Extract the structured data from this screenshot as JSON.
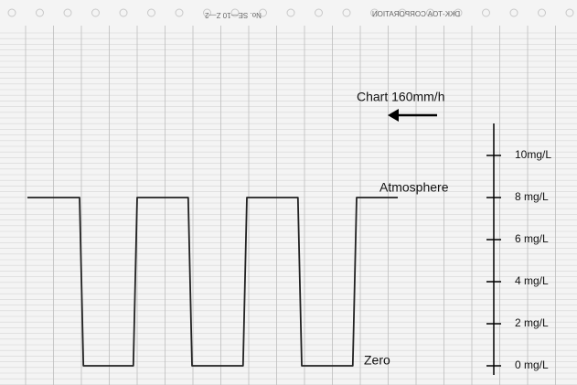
{
  "chart_data": {
    "type": "line",
    "header": {
      "sheet_number": "No. SE—10 Z—2",
      "maker": "DKK-TOA CORPORATION"
    },
    "annotations": {
      "speed": "Chart 160mm/h",
      "atmosphere": "Atmosphere",
      "zero": "Zero"
    },
    "x": [
      0,
      0.95,
      1.02,
      1.93,
      2.0,
      2.93,
      3.0,
      3.93,
      4.0,
      4.93,
      5.0,
      5.93,
      6.0,
      6.75
    ],
    "series": [
      {
        "color": "#222222",
        "values": [
          8,
          8,
          0,
          0,
          8,
          8,
          0,
          0,
          8,
          8,
          0,
          0,
          8,
          8
        ]
      }
    ],
    "xlim": [
      -0.5,
      10
    ],
    "ylim": [
      -0.5,
      11.5
    ],
    "yticks": [
      {
        "value": 0,
        "label": "0 mg/L"
      },
      {
        "value": 2,
        "label": "2 mg/L"
      },
      {
        "value": 4,
        "label": "4 mg/L"
      },
      {
        "value": 6,
        "label": "6 mg/L"
      },
      {
        "value": 8,
        "label": "8 mg/L"
      },
      {
        "value": 10,
        "label": "10mg/L"
      }
    ]
  }
}
